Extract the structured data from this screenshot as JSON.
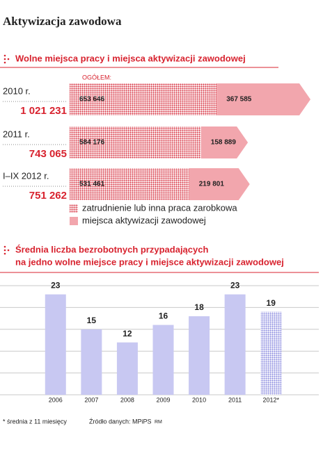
{
  "title": "Aktywizacja zawodowa",
  "chart_data": [
    {
      "type": "bar",
      "orientation": "horizontal",
      "stacked": true,
      "title": "Wolne miejsca pracy i miejsca aktywizacji zawodowej",
      "total_label": "OGÓŁEM:",
      "categories": [
        "2010 r.",
        "2011 r.",
        "I–IX 2012 r."
      ],
      "totals": [
        1021231,
        743065,
        751262
      ],
      "totals_labels": [
        "1 021 231",
        "743 065",
        "751 262"
      ],
      "series": [
        {
          "name": "zatrudnienie lub inna praca zarobkowa",
          "color": "#d83a48",
          "pattern": "dots",
          "values": [
            653646,
            584176,
            531461
          ],
          "value_labels": [
            "653 646",
            "584 176",
            "531 461"
          ]
        },
        {
          "name": "miejsca aktywizacji zawodowej",
          "color": "#f2a6ad",
          "pattern": "solid",
          "values": [
            367585,
            158889,
            219801
          ],
          "value_labels": [
            "367 585",
            "158 889",
            "219 801"
          ]
        }
      ]
    },
    {
      "type": "bar",
      "orientation": "vertical",
      "title": [
        "Średnia liczba bezrobotnych przypadających",
        "na jedno wolne miejsce pracy i miejsce aktywizacji zawodowej"
      ],
      "categories": [
        "2006",
        "2007",
        "2008",
        "2009",
        "2010",
        "2011",
        "2012*"
      ],
      "values": [
        23,
        15,
        12,
        16,
        18,
        23,
        19
      ],
      "color": "#c8c8f2",
      "patterns": [
        "solid",
        "solid",
        "solid",
        "solid",
        "solid",
        "solid",
        "dots"
      ],
      "ylim": [
        0,
        25
      ],
      "yticks": [
        0,
        5,
        10,
        15,
        20,
        25
      ],
      "grid": true
    }
  ],
  "notes": {
    "footnote": "* średnia z 11 miesięcy",
    "source": "Źródło danych: MPiPS",
    "author": "RM"
  }
}
